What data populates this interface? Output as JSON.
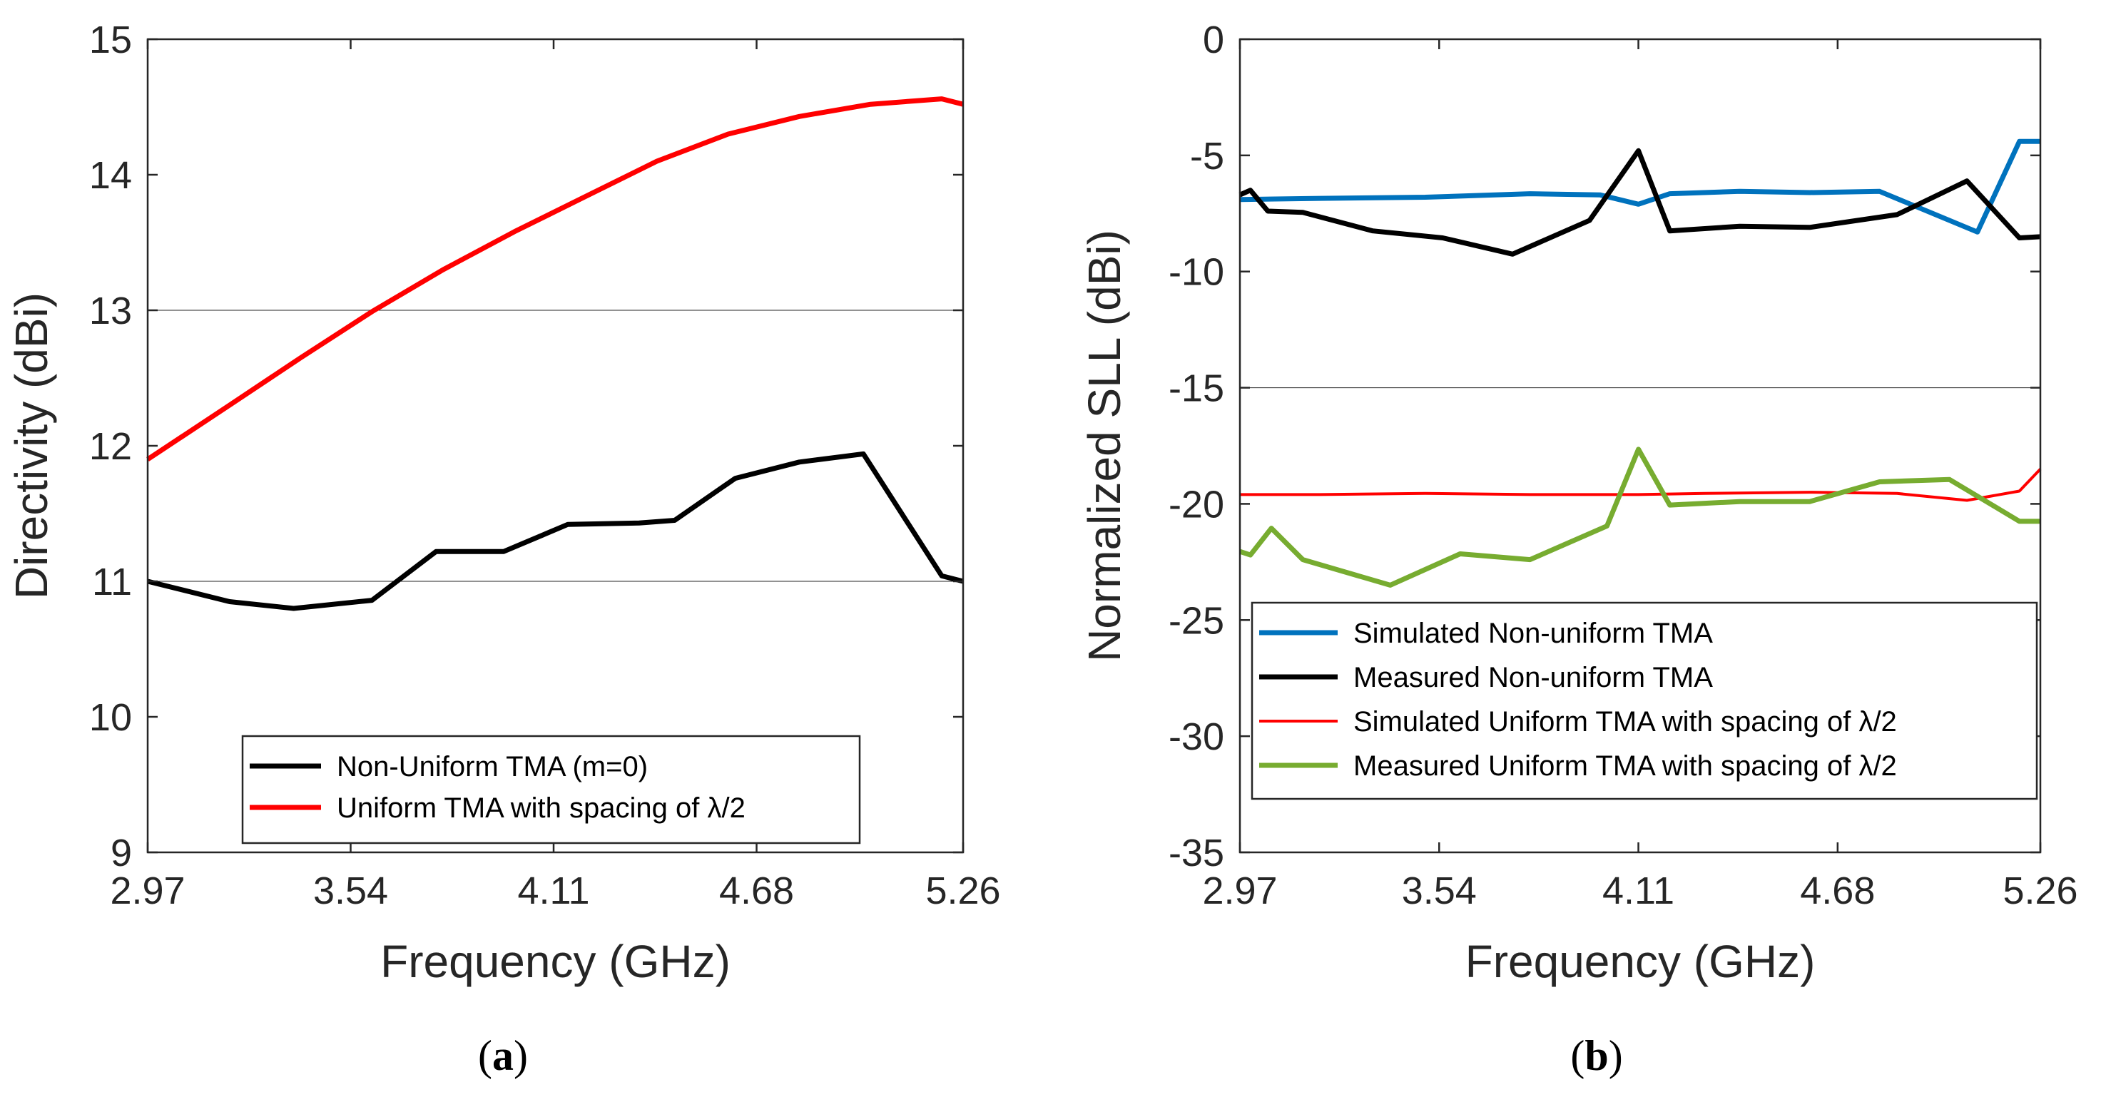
{
  "chart_data": [
    {
      "type": "line",
      "panel_label": {
        "open": "(",
        "letter": "a",
        "close": ")"
      },
      "xlabel": "Frequency (GHz)",
      "ylabel": "Directivity (dBi)",
      "xlim": [
        2.97,
        5.26
      ],
      "ylim": [
        9,
        15
      ],
      "xticks": [
        "2.97",
        "3.54",
        "4.11",
        "4.68",
        "5.26"
      ],
      "yticks": [
        "9",
        "10",
        "11",
        "12",
        "13",
        "14",
        "15"
      ],
      "gridlines_y": [
        11,
        13
      ],
      "legend_position": "lower-right",
      "series": [
        {
          "name": "Non-Uniform TMA (m=0)",
          "color": "#000000",
          "x": [
            2.97,
            3.2,
            3.38,
            3.6,
            3.78,
            3.97,
            4.15,
            4.35,
            4.45,
            4.62,
            4.8,
            4.98,
            5.2,
            5.26
          ],
          "y": [
            11.0,
            10.85,
            10.8,
            10.86,
            11.22,
            11.22,
            11.42,
            11.43,
            11.45,
            11.76,
            11.88,
            11.94,
            11.04,
            11.0
          ]
        },
        {
          "name": "Uniform TMA with spacing of λ/2",
          "color": "#ff0000",
          "x": [
            2.97,
            3.2,
            3.4,
            3.6,
            3.8,
            4.0,
            4.2,
            4.4,
            4.6,
            4.8,
            5.0,
            5.2,
            5.26
          ],
          "y": [
            11.9,
            12.3,
            12.65,
            12.99,
            13.3,
            13.58,
            13.84,
            14.1,
            14.3,
            14.43,
            14.52,
            14.56,
            14.52
          ]
        }
      ]
    },
    {
      "type": "line",
      "panel_label": {
        "open": "(",
        "letter": "b",
        "close": ")"
      },
      "xlabel": "Frequency (GHz)",
      "ylabel": "Normalized SLL (dBi)",
      "xlim": [
        2.97,
        5.26
      ],
      "ylim": [
        -35,
        0
      ],
      "xticks": [
        "2.97",
        "3.54",
        "4.11",
        "4.68",
        "5.26"
      ],
      "yticks": [
        "-35",
        "-30",
        "-25",
        "-20",
        "-15",
        "-10",
        "-5",
        "0"
      ],
      "gridlines_y": [
        -15
      ],
      "legend_position": "lower-right",
      "series": [
        {
          "name": "Simulated Non-uniform TMA",
          "color": "#0072bd",
          "x": [
            2.97,
            3.2,
            3.5,
            3.8,
            4.0,
            4.11,
            4.2,
            4.4,
            4.6,
            4.8,
            5.08,
            5.2,
            5.26
          ],
          "y": [
            -6.9,
            -6.85,
            -6.8,
            -6.65,
            -6.7,
            -7.1,
            -6.65,
            -6.55,
            -6.6,
            -6.55,
            -8.3,
            -4.4,
            -4.4
          ]
        },
        {
          "name": "Measured Non-uniform TMA",
          "color": "#000000",
          "x": [
            2.97,
            3.0,
            3.05,
            3.15,
            3.35,
            3.55,
            3.75,
            3.97,
            4.11,
            4.2,
            4.4,
            4.6,
            4.85,
            5.05,
            5.2,
            5.26
          ],
          "y": [
            -6.7,
            -6.5,
            -7.4,
            -7.45,
            -8.25,
            -8.55,
            -9.25,
            -7.8,
            -4.8,
            -8.25,
            -8.05,
            -8.1,
            -7.55,
            -6.1,
            -8.55,
            -8.5
          ]
        },
        {
          "name": "Simulated Uniform TMA with spacing of λ/2",
          "color": "#ff0000",
          "x": [
            2.97,
            3.2,
            3.5,
            3.8,
            4.11,
            4.3,
            4.6,
            4.85,
            5.05,
            5.2,
            5.26
          ],
          "y": [
            -19.6,
            -19.6,
            -19.55,
            -19.6,
            -19.6,
            -19.55,
            -19.5,
            -19.55,
            -19.85,
            -19.45,
            -18.5
          ]
        },
        {
          "name": "Measured Uniform TMA with spacing of λ/2",
          "color": "#77ac30",
          "x": [
            2.97,
            3.0,
            3.06,
            3.15,
            3.4,
            3.6,
            3.8,
            4.02,
            4.11,
            4.2,
            4.4,
            4.6,
            4.8,
            5.0,
            5.2,
            5.26
          ],
          "y": [
            -22.05,
            -22.2,
            -21.05,
            -22.4,
            -23.5,
            -22.15,
            -22.4,
            -20.95,
            -17.65,
            -20.05,
            -19.9,
            -19.9,
            -19.05,
            -18.95,
            -20.75,
            -20.75
          ]
        }
      ]
    }
  ]
}
